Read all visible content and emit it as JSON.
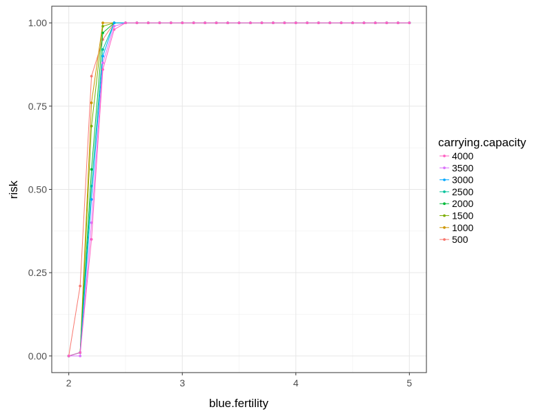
{
  "chart_data": {
    "type": "line",
    "xlabel": "blue.fertility",
    "ylabel": "risk",
    "xlim": [
      1.85,
      5.15
    ],
    "ylim": [
      -0.05,
      1.05
    ],
    "x_ticks": [
      2,
      3,
      4,
      5
    ],
    "x_tick_labels": [
      "2",
      "3",
      "4",
      "5"
    ],
    "y_ticks": [
      0,
      0.25,
      0.5,
      0.75,
      1
    ],
    "y_tick_labels": [
      "0.00",
      "0.25",
      "0.50",
      "0.75",
      "1.00"
    ],
    "grid": true,
    "legend": {
      "title": "carrying.capacity",
      "placement": "right"
    },
    "x": [
      2.0,
      2.1,
      2.2,
      2.3,
      2.4,
      2.5,
      2.6,
      2.7,
      2.8,
      2.9,
      3.0,
      3.1,
      3.2,
      3.3,
      3.4,
      3.5,
      3.6,
      3.7,
      3.8,
      3.9,
      4.0,
      4.1,
      4.2,
      4.3,
      4.4,
      4.5,
      4.6,
      4.7,
      4.8,
      4.9,
      5.0
    ],
    "series": [
      {
        "name": "4000",
        "color": "#FF61C3",
        "values": [
          0,
          0.01,
          0.35,
          0.86,
          0.98,
          1,
          1,
          1,
          1,
          1,
          1,
          1,
          1,
          1,
          1,
          1,
          1,
          1,
          1,
          1,
          1,
          1,
          1,
          1,
          1,
          1,
          1,
          1,
          1,
          1,
          1
        ]
      },
      {
        "name": "3500",
        "color": "#DB72FB",
        "values": [
          0,
          0.0,
          0.4,
          0.88,
          0.99,
          1,
          1,
          1,
          1,
          1,
          1,
          1,
          1,
          1,
          1,
          1,
          1,
          1,
          1,
          1,
          1,
          1,
          1,
          1,
          1,
          1,
          1,
          1,
          1,
          1,
          1
        ]
      },
      {
        "name": "3000",
        "color": "#00A9FF",
        "values": [
          0,
          0.01,
          0.47,
          0.9,
          1,
          1,
          1,
          1,
          1,
          1,
          1,
          1,
          1,
          1,
          1,
          1,
          1,
          1,
          1,
          1,
          1,
          1,
          1,
          1,
          1,
          1,
          1,
          1,
          1,
          1,
          1
        ]
      },
      {
        "name": "2500",
        "color": "#00C19A",
        "values": [
          0,
          0.01,
          0.51,
          0.92,
          1,
          1,
          1,
          1,
          1,
          1,
          1,
          1,
          1,
          1,
          1,
          1,
          1,
          1,
          1,
          1,
          1,
          1,
          1,
          1,
          1,
          1,
          1,
          1,
          1,
          1,
          1
        ]
      },
      {
        "name": "2000",
        "color": "#00BA38",
        "values": [
          0,
          0.01,
          0.56,
          0.97,
          1,
          1,
          1,
          1,
          1,
          1,
          1,
          1,
          1,
          1,
          1,
          1,
          1,
          1,
          1,
          1,
          1,
          1,
          1,
          1,
          1,
          1,
          1,
          1,
          1,
          1,
          1
        ]
      },
      {
        "name": "1500",
        "color": "#7CAE00",
        "values": [
          0,
          0.01,
          0.69,
          0.99,
          1,
          1,
          1,
          1,
          1,
          1,
          1,
          1,
          1,
          1,
          1,
          1,
          1,
          1,
          1,
          1,
          1,
          1,
          1,
          1,
          1,
          1,
          1,
          1,
          1,
          1,
          1
        ]
      },
      {
        "name": "1000",
        "color": "#CD9600",
        "values": [
          0,
          0.01,
          0.76,
          1,
          1,
          1,
          1,
          1,
          1,
          1,
          1,
          1,
          1,
          1,
          1,
          1,
          1,
          1,
          1,
          1,
          1,
          1,
          1,
          1,
          1,
          1,
          1,
          1,
          1,
          1,
          1
        ]
      },
      {
        "name": "500",
        "color": "#F8766D",
        "values": [
          0,
          0.21,
          0.84,
          0.95,
          1,
          1,
          1,
          1,
          1,
          1,
          1,
          1,
          1,
          1,
          1,
          1,
          1,
          1,
          1,
          1,
          1,
          1,
          1,
          1,
          1,
          1,
          1,
          1,
          1,
          1,
          1
        ]
      }
    ]
  }
}
